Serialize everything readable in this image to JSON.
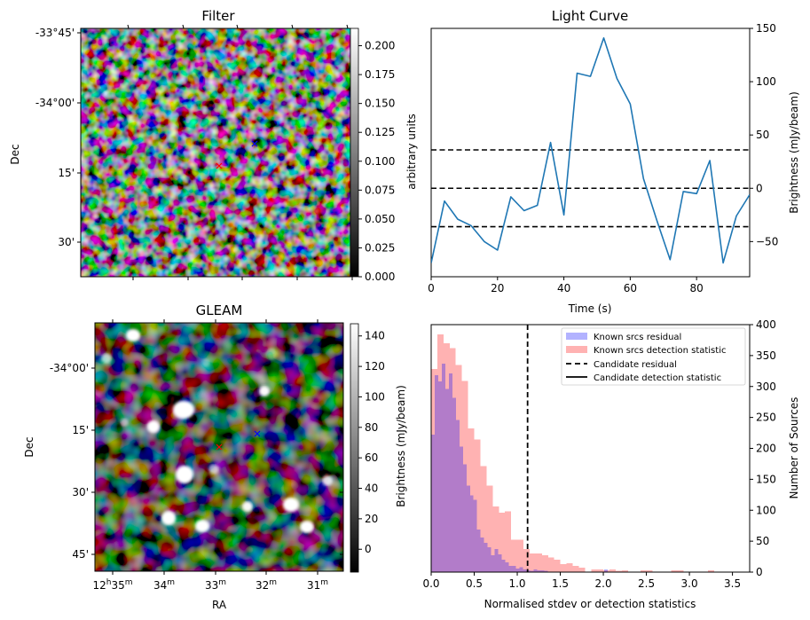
{
  "figure": {
    "panels": [
      "Filter",
      "Light Curve",
      "GLEAM",
      "Histogram"
    ]
  },
  "chart_data": [
    {
      "type": "heatmap",
      "id": "filter",
      "title": "Filter",
      "xlabel": "",
      "ylabel": "Dec",
      "ytick_labels": [
        "-33°45'",
        "-34°00'",
        "15'",
        "30'"
      ],
      "colormap": "gray",
      "colorbar": {
        "label": "arbitrary units",
        "range": [
          0.0,
          0.215
        ],
        "ticks": [
          0.0,
          0.025,
          0.05,
          0.075,
          0.1,
          0.125,
          0.15,
          0.175,
          0.2
        ],
        "tick_labels": [
          "0.000",
          "0.025",
          "0.050",
          "0.075",
          "0.100",
          "0.125",
          "0.150",
          "0.175",
          "0.200"
        ]
      },
      "markers": [
        {
          "name": "candidate",
          "symbol": "x",
          "color": "#ff0000"
        },
        {
          "name": "reference",
          "symbol": "x",
          "color": "#0000ff"
        }
      ]
    },
    {
      "type": "line",
      "id": "light_curve",
      "title": "Light Curve",
      "xlabel": "Time (s)",
      "ylabel": "Brightness (mJy/beam)",
      "yaxis_side": "right",
      "xlim": [
        0,
        96
      ],
      "ylim": [
        -83,
        150
      ],
      "xticks": [
        0,
        20,
        40,
        60,
        80
      ],
      "yticks": [
        -50,
        0,
        50,
        100,
        150
      ],
      "ytick_labels": [
        "−50",
        "0",
        "50",
        "100",
        "150"
      ],
      "series": [
        {
          "name": "light curve",
          "color": "#1f77b4",
          "x": [
            0,
            4,
            8,
            12,
            16,
            20,
            24,
            28,
            32,
            36,
            40,
            44,
            48,
            52,
            56,
            60,
            64,
            68,
            72,
            76,
            80,
            84,
            88,
            92,
            96
          ],
          "y": [
            -70,
            -12,
            -29,
            -35,
            -50,
            -58,
            -8,
            -21,
            -16,
            43,
            -25,
            108,
            105,
            141,
            103,
            79,
            9,
            -30,
            -67,
            -3,
            -5,
            26,
            -70,
            -26,
            -6
          ]
        }
      ],
      "hlines": [
        {
          "y": 36,
          "style": "dashed",
          "color": "#000000"
        },
        {
          "y": 0,
          "style": "dashed",
          "color": "#000000"
        },
        {
          "y": -36,
          "style": "dashed",
          "color": "#000000"
        }
      ]
    },
    {
      "type": "heatmap",
      "id": "gleam",
      "title": "GLEAM",
      "xlabel": "RA",
      "ylabel": "Dec",
      "xtick_labels": [
        {
          "main": "12",
          "sup1": "h",
          "main2": "35",
          "sup2": "m"
        },
        {
          "main": "34",
          "sup": "m"
        },
        {
          "main": "33",
          "sup": "m"
        },
        {
          "main": "32",
          "sup": "m"
        },
        {
          "main": "31",
          "sup": "m"
        }
      ],
      "ytick_labels": [
        "-34°00'",
        "15'",
        "30'",
        "45'"
      ],
      "colormap": "gray",
      "colorbar": {
        "label": "Brightness (mJy/beam)",
        "range": [
          -15,
          148
        ],
        "ticks": [
          0,
          20,
          40,
          60,
          80,
          100,
          120,
          140
        ],
        "tick_labels": [
          "0",
          "20",
          "40",
          "60",
          "80",
          "100",
          "120",
          "140"
        ]
      },
      "markers": [
        {
          "name": "candidate",
          "symbol": "x",
          "color": "#ff0000"
        },
        {
          "name": "reference",
          "symbol": "x",
          "color": "#0000ff"
        }
      ]
    },
    {
      "type": "bar",
      "id": "histogram",
      "title": "",
      "xlabel": "Normalised stdev or detection statistics",
      "ylabel": "Number of Sources",
      "yaxis_side": "right",
      "xlim": [
        0.0,
        3.7
      ],
      "ylim": [
        0,
        400
      ],
      "xticks": [
        0.0,
        0.5,
        1.0,
        1.5,
        2.0,
        2.5,
        3.0,
        3.5
      ],
      "xtick_labels": [
        "0.0",
        "0.5",
        "1.0",
        "1.5",
        "2.0",
        "2.5",
        "3.0",
        "3.5"
      ],
      "yticks": [
        0,
        50,
        100,
        150,
        200,
        250,
        300,
        350,
        400
      ],
      "series": [
        {
          "name": "Known srcs residual",
          "color": "#0000ff",
          "alpha": 0.3,
          "bin_start": 0.0,
          "bin_width": 0.041,
          "counts": [
            222,
            318,
            308,
            337,
            296,
            321,
            282,
            246,
            203,
            174,
            140,
            124,
            117,
            69,
            56,
            47,
            40,
            27,
            37,
            29,
            20,
            16,
            10,
            10,
            6,
            8,
            4,
            3,
            2,
            4,
            3,
            3,
            2,
            1,
            1,
            1,
            1,
            1,
            0,
            0,
            0,
            0,
            0,
            0,
            0,
            0,
            0,
            0,
            0,
            4,
            0,
            0,
            0
          ]
        },
        {
          "name": "Known srcs detection statistic",
          "color": "#ff0000",
          "alpha": 0.3,
          "bin_start": 0.0,
          "bin_width": 0.0715,
          "counts": [
            328,
            384,
            370,
            362,
            335,
            309,
            232,
            214,
            171,
            140,
            106,
            96,
            98,
            52,
            52,
            37,
            30,
            30,
            27,
            24,
            20,
            13,
            14,
            10,
            7,
            1,
            4,
            4,
            3,
            4,
            2,
            3,
            0,
            0,
            3,
            3,
            0,
            0,
            1,
            3,
            3,
            1,
            0,
            0,
            0,
            3,
            0,
            0,
            0,
            1,
            1
          ]
        }
      ],
      "vlines": [
        {
          "name": "Candidate residual",
          "x": 1.12,
          "style": "dashed",
          "color": "#000000"
        }
      ],
      "legend": {
        "placement": "top-right",
        "entries": [
          {
            "label": "Known srcs residual",
            "kind": "patch",
            "color": "#b2b2ff"
          },
          {
            "label": "Known srcs detection statistic",
            "kind": "patch",
            "color": "#ffb2b2"
          },
          {
            "label": "Candidate residual",
            "kind": "dashed-line",
            "color": "#000000"
          },
          {
            "label": "Candidate detection statistic",
            "kind": "solid-line",
            "color": "#000000"
          }
        ]
      }
    }
  ]
}
